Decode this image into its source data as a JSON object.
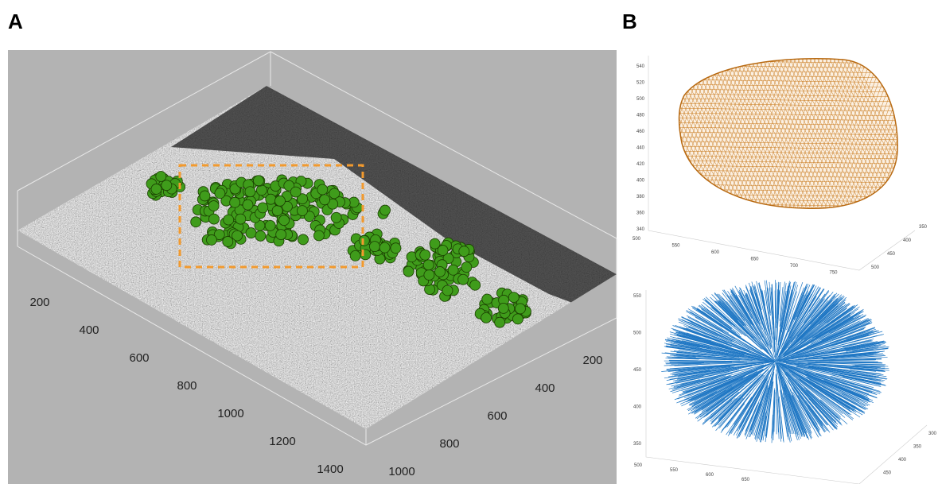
{
  "panel_a": {
    "label": "A",
    "x_ticks": [
      200,
      400,
      600,
      800,
      1000,
      1200,
      1400
    ],
    "y_ticks": [
      200,
      400,
      600,
      800,
      1000
    ]
  },
  "panel_b": {
    "label": "B",
    "top": {
      "z_ticks": [
        340,
        360,
        380,
        400,
        420,
        440,
        460,
        480,
        500,
        520,
        540
      ],
      "x_ticks": [
        500,
        550,
        600,
        650,
        700,
        750
      ],
      "y_ticks": [
        350,
        400,
        450,
        500
      ]
    },
    "bottom": {
      "z_ticks": [
        350,
        400,
        450,
        500,
        550
      ],
      "x_ticks": [
        500,
        550,
        600,
        650
      ],
      "y_ticks": [
        300,
        350,
        400,
        450
      ]
    }
  }
}
